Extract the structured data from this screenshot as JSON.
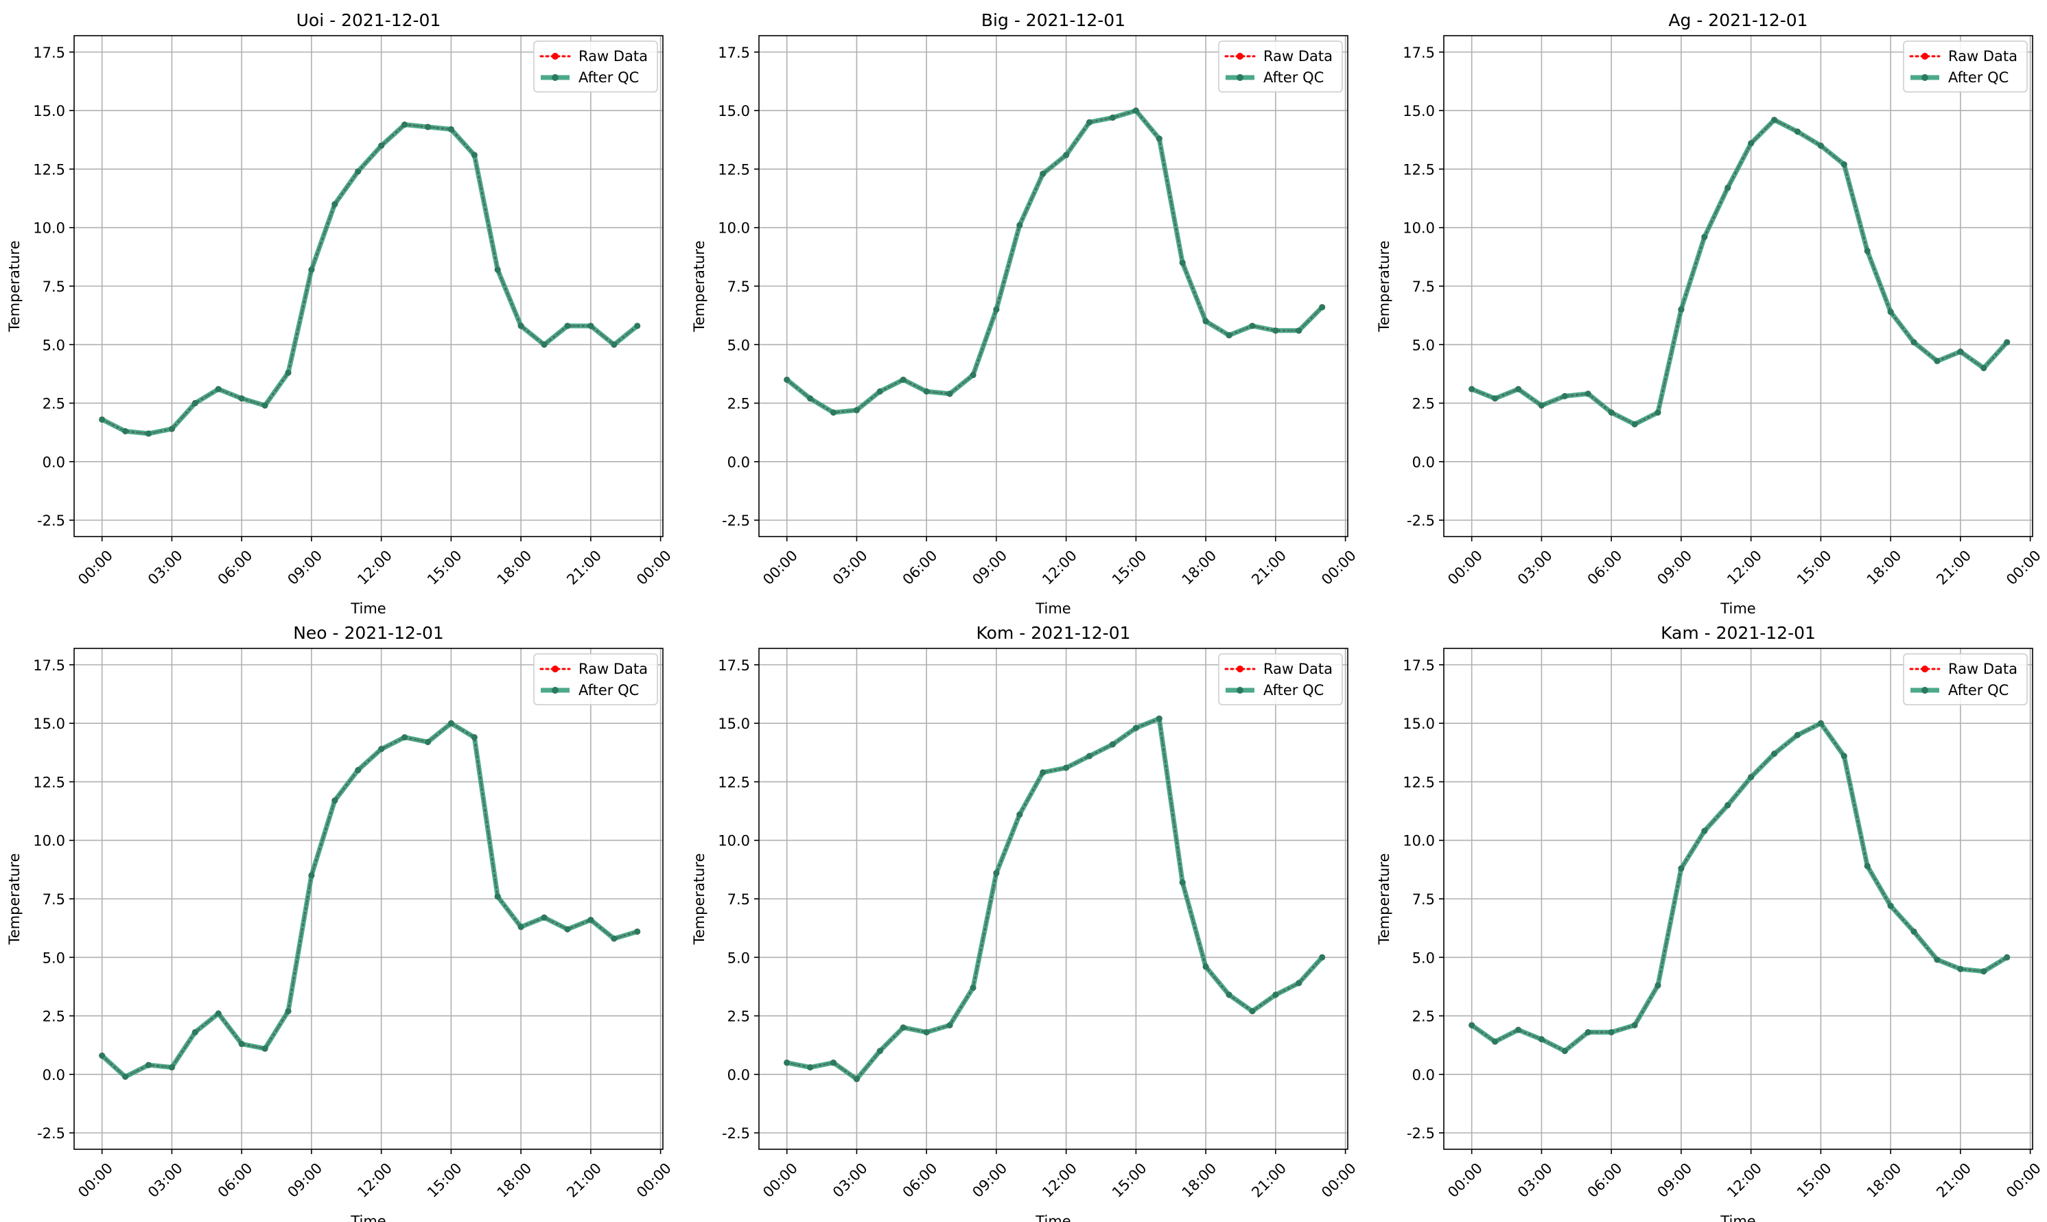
{
  "chart_data": [
    {
      "type": "line",
      "title": "Uoi - 2021-12-01",
      "xlabel": "Time",
      "ylabel": "Temperature",
      "ylim": [
        -3.2,
        18.2
      ],
      "xlim": [
        -1.2,
        24.1
      ],
      "x_ticks": [
        0,
        3,
        6,
        9,
        12,
        15,
        18,
        21,
        24
      ],
      "x_tick_labels": [
        "00:00",
        "03:00",
        "06:00",
        "09:00",
        "12:00",
        "15:00",
        "18:00",
        "21:00",
        "00:00"
      ],
      "y_ticks": [
        -2.5,
        0.0,
        2.5,
        5.0,
        7.5,
        10.0,
        12.5,
        15.0,
        17.5
      ],
      "y_tick_labels": [
        "-2.5",
        "0.0",
        "2.5",
        "5.0",
        "7.5",
        "10.0",
        "12.5",
        "15.0",
        "17.5"
      ],
      "grid": true,
      "legend": "top-right",
      "x": [
        0,
        1,
        2,
        3,
        4,
        5,
        6,
        7,
        8,
        9,
        10,
        11,
        12,
        13,
        14,
        15,
        16,
        17,
        18,
        19,
        20,
        21,
        22,
        23
      ],
      "series": [
        {
          "name": "Raw Data",
          "color": "#ff0000",
          "style": "dotted",
          "values": [
            1.8,
            1.3,
            1.2,
            1.4,
            2.5,
            3.1,
            2.7,
            2.4,
            3.8,
            8.2,
            11.0,
            12.4,
            13.5,
            14.4,
            14.3,
            14.2,
            13.1,
            8.2,
            5.8,
            5.0,
            5.8,
            5.8,
            5.0,
            5.8
          ]
        },
        {
          "name": "After QC",
          "color": "#2e9a78",
          "style": "solid",
          "values": [
            1.8,
            1.3,
            1.2,
            1.4,
            2.5,
            3.1,
            2.7,
            2.4,
            3.8,
            8.2,
            11.0,
            12.4,
            13.5,
            14.4,
            14.3,
            14.2,
            13.1,
            8.2,
            5.8,
            5.0,
            5.8,
            5.8,
            5.0,
            5.8
          ]
        }
      ]
    },
    {
      "type": "line",
      "title": "Big - 2021-12-01",
      "xlabel": "Time",
      "ylabel": "Temperature",
      "ylim": [
        -3.2,
        18.2
      ],
      "xlim": [
        -1.2,
        24.1
      ],
      "x_ticks": [
        0,
        3,
        6,
        9,
        12,
        15,
        18,
        21,
        24
      ],
      "x_tick_labels": [
        "00:00",
        "03:00",
        "06:00",
        "09:00",
        "12:00",
        "15:00",
        "18:00",
        "21:00",
        "00:00"
      ],
      "y_ticks": [
        -2.5,
        0.0,
        2.5,
        5.0,
        7.5,
        10.0,
        12.5,
        15.0,
        17.5
      ],
      "y_tick_labels": [
        "-2.5",
        "0.0",
        "2.5",
        "5.0",
        "7.5",
        "10.0",
        "12.5",
        "15.0",
        "17.5"
      ],
      "grid": true,
      "legend": "top-right",
      "x": [
        0,
        1,
        2,
        3,
        4,
        5,
        6,
        7,
        8,
        9,
        10,
        11,
        12,
        13,
        14,
        15,
        16,
        17,
        18,
        19,
        20,
        21,
        22,
        23
      ],
      "series": [
        {
          "name": "Raw Data",
          "color": "#ff0000",
          "style": "dotted",
          "values": [
            3.5,
            2.7,
            2.1,
            2.2,
            3.0,
            3.5,
            3.0,
            2.9,
            3.7,
            6.5,
            10.1,
            12.3,
            13.1,
            14.5,
            14.7,
            15.0,
            13.8,
            8.5,
            6.0,
            5.4,
            5.8,
            5.6,
            5.6,
            6.6
          ]
        },
        {
          "name": "After QC",
          "color": "#2e9a78",
          "style": "solid",
          "values": [
            3.5,
            2.7,
            2.1,
            2.2,
            3.0,
            3.5,
            3.0,
            2.9,
            3.7,
            6.5,
            10.1,
            12.3,
            13.1,
            14.5,
            14.7,
            15.0,
            13.8,
            8.5,
            6.0,
            5.4,
            5.8,
            5.6,
            5.6,
            6.6
          ]
        }
      ]
    },
    {
      "type": "line",
      "title": "Ag - 2021-12-01",
      "xlabel": "Time",
      "ylabel": "Temperature",
      "ylim": [
        -3.2,
        18.2
      ],
      "xlim": [
        -1.2,
        24.1
      ],
      "x_ticks": [
        0,
        3,
        6,
        9,
        12,
        15,
        18,
        21,
        24
      ],
      "x_tick_labels": [
        "00:00",
        "03:00",
        "06:00",
        "09:00",
        "12:00",
        "15:00",
        "18:00",
        "21:00",
        "00:00"
      ],
      "y_ticks": [
        -2.5,
        0.0,
        2.5,
        5.0,
        7.5,
        10.0,
        12.5,
        15.0,
        17.5
      ],
      "y_tick_labels": [
        "-2.5",
        "0.0",
        "2.5",
        "5.0",
        "7.5",
        "10.0",
        "12.5",
        "15.0",
        "17.5"
      ],
      "grid": true,
      "legend": "top-right",
      "x": [
        0,
        1,
        2,
        3,
        4,
        5,
        6,
        7,
        8,
        9,
        10,
        11,
        12,
        13,
        14,
        15,
        16,
        17,
        18,
        19,
        20,
        21,
        22,
        23
      ],
      "series": [
        {
          "name": "Raw Data",
          "color": "#ff0000",
          "style": "dotted",
          "values": [
            3.1,
            2.7,
            3.1,
            2.4,
            2.8,
            2.9,
            2.1,
            1.6,
            2.1,
            6.5,
            9.6,
            11.7,
            13.6,
            14.6,
            14.1,
            13.5,
            12.7,
            9.0,
            6.4,
            5.1,
            4.3,
            4.7,
            4.0,
            5.1
          ]
        },
        {
          "name": "After QC",
          "color": "#2e9a78",
          "style": "solid",
          "values": [
            3.1,
            2.7,
            3.1,
            2.4,
            2.8,
            2.9,
            2.1,
            1.6,
            2.1,
            6.5,
            9.6,
            11.7,
            13.6,
            14.6,
            14.1,
            13.5,
            12.7,
            9.0,
            6.4,
            5.1,
            4.3,
            4.7,
            4.0,
            5.1
          ]
        }
      ]
    },
    {
      "type": "line",
      "title": "Neo - 2021-12-01",
      "xlabel": "Time",
      "ylabel": "Temperature",
      "ylim": [
        -3.2,
        18.2
      ],
      "xlim": [
        -1.2,
        24.1
      ],
      "x_ticks": [
        0,
        3,
        6,
        9,
        12,
        15,
        18,
        21,
        24
      ],
      "x_tick_labels": [
        "00:00",
        "03:00",
        "06:00",
        "09:00",
        "12:00",
        "15:00",
        "18:00",
        "21:00",
        "00:00"
      ],
      "y_ticks": [
        -2.5,
        0.0,
        2.5,
        5.0,
        7.5,
        10.0,
        12.5,
        15.0,
        17.5
      ],
      "y_tick_labels": [
        "-2.5",
        "0.0",
        "2.5",
        "5.0",
        "7.5",
        "10.0",
        "12.5",
        "15.0",
        "17.5"
      ],
      "grid": true,
      "legend": "top-right",
      "x": [
        0,
        1,
        2,
        3,
        4,
        5,
        6,
        7,
        8,
        9,
        10,
        11,
        12,
        13,
        14,
        15,
        16,
        17,
        18,
        19,
        20,
        21,
        22,
        23
      ],
      "series": [
        {
          "name": "Raw Data",
          "color": "#ff0000",
          "style": "dotted",
          "values": [
            0.8,
            -0.1,
            0.4,
            0.3,
            1.8,
            2.6,
            1.3,
            1.1,
            2.7,
            8.5,
            11.7,
            13.0,
            13.9,
            14.4,
            14.2,
            15.0,
            14.4,
            7.6,
            6.3,
            6.7,
            6.2,
            6.6,
            5.8,
            6.1
          ]
        },
        {
          "name": "After QC",
          "color": "#2e9a78",
          "style": "solid",
          "values": [
            0.8,
            -0.1,
            0.4,
            0.3,
            1.8,
            2.6,
            1.3,
            1.1,
            2.7,
            8.5,
            11.7,
            13.0,
            13.9,
            14.4,
            14.2,
            15.0,
            14.4,
            7.6,
            6.3,
            6.7,
            6.2,
            6.6,
            5.8,
            6.1
          ]
        }
      ]
    },
    {
      "type": "line",
      "title": "Kom - 2021-12-01",
      "xlabel": "Time",
      "ylabel": "Temperature",
      "ylim": [
        -3.2,
        18.2
      ],
      "xlim": [
        -1.2,
        24.1
      ],
      "x_ticks": [
        0,
        3,
        6,
        9,
        12,
        15,
        18,
        21,
        24
      ],
      "x_tick_labels": [
        "00:00",
        "03:00",
        "06:00",
        "09:00",
        "12:00",
        "15:00",
        "18:00",
        "21:00",
        "00:00"
      ],
      "y_ticks": [
        -2.5,
        0.0,
        2.5,
        5.0,
        7.5,
        10.0,
        12.5,
        15.0,
        17.5
      ],
      "y_tick_labels": [
        "-2.5",
        "0.0",
        "2.5",
        "5.0",
        "7.5",
        "10.0",
        "12.5",
        "15.0",
        "17.5"
      ],
      "grid": true,
      "legend": "top-right",
      "x": [
        0,
        1,
        2,
        3,
        4,
        5,
        6,
        7,
        8,
        9,
        10,
        11,
        12,
        13,
        14,
        15,
        16,
        17,
        18,
        19,
        20,
        21,
        22,
        23
      ],
      "series": [
        {
          "name": "Raw Data",
          "color": "#ff0000",
          "style": "dotted",
          "values": [
            0.5,
            0.3,
            0.5,
            -0.2,
            1.0,
            2.0,
            1.8,
            2.1,
            3.7,
            8.6,
            11.1,
            12.9,
            13.1,
            13.6,
            14.1,
            14.8,
            15.2,
            8.2,
            4.6,
            3.4,
            2.7,
            3.4,
            3.9,
            5.0
          ]
        },
        {
          "name": "After QC",
          "color": "#2e9a78",
          "style": "solid",
          "values": [
            0.5,
            0.3,
            0.5,
            -0.2,
            1.0,
            2.0,
            1.8,
            2.1,
            3.7,
            8.6,
            11.1,
            12.9,
            13.1,
            13.6,
            14.1,
            14.8,
            15.2,
            8.2,
            4.6,
            3.4,
            2.7,
            3.4,
            3.9,
            5.0
          ]
        }
      ]
    },
    {
      "type": "line",
      "title": "Kam - 2021-12-01",
      "xlabel": "Time",
      "ylabel": "Temperature",
      "ylim": [
        -3.2,
        18.2
      ],
      "xlim": [
        -1.2,
        24.1
      ],
      "x_ticks": [
        0,
        3,
        6,
        9,
        12,
        15,
        18,
        21,
        24
      ],
      "x_tick_labels": [
        "00:00",
        "03:00",
        "06:00",
        "09:00",
        "12:00",
        "15:00",
        "18:00",
        "21:00",
        "00:00"
      ],
      "y_ticks": [
        -2.5,
        0.0,
        2.5,
        5.0,
        7.5,
        10.0,
        12.5,
        15.0,
        17.5
      ],
      "y_tick_labels": [
        "-2.5",
        "0.0",
        "2.5",
        "5.0",
        "7.5",
        "10.0",
        "12.5",
        "15.0",
        "17.5"
      ],
      "grid": true,
      "legend": "top-right",
      "x": [
        0,
        1,
        2,
        3,
        4,
        5,
        6,
        7,
        8,
        9,
        10,
        11,
        12,
        13,
        14,
        15,
        16,
        17,
        18,
        19,
        20,
        21,
        22,
        23
      ],
      "series": [
        {
          "name": "Raw Data",
          "color": "#ff0000",
          "style": "dotted",
          "values": [
            2.1,
            1.4,
            1.9,
            1.5,
            1.0,
            1.8,
            1.8,
            2.1,
            3.8,
            8.8,
            10.4,
            11.5,
            12.7,
            13.7,
            14.5,
            15.0,
            13.6,
            8.9,
            7.2,
            6.1,
            4.9,
            4.5,
            4.4,
            5.0
          ]
        },
        {
          "name": "After QC",
          "color": "#2e9a78",
          "style": "solid",
          "values": [
            2.1,
            1.4,
            1.9,
            1.5,
            1.0,
            1.8,
            1.8,
            2.1,
            3.8,
            8.8,
            10.4,
            11.5,
            12.7,
            13.7,
            14.5,
            15.0,
            13.6,
            8.9,
            7.2,
            6.1,
            4.9,
            4.5,
            4.4,
            5.0
          ]
        }
      ]
    }
  ]
}
